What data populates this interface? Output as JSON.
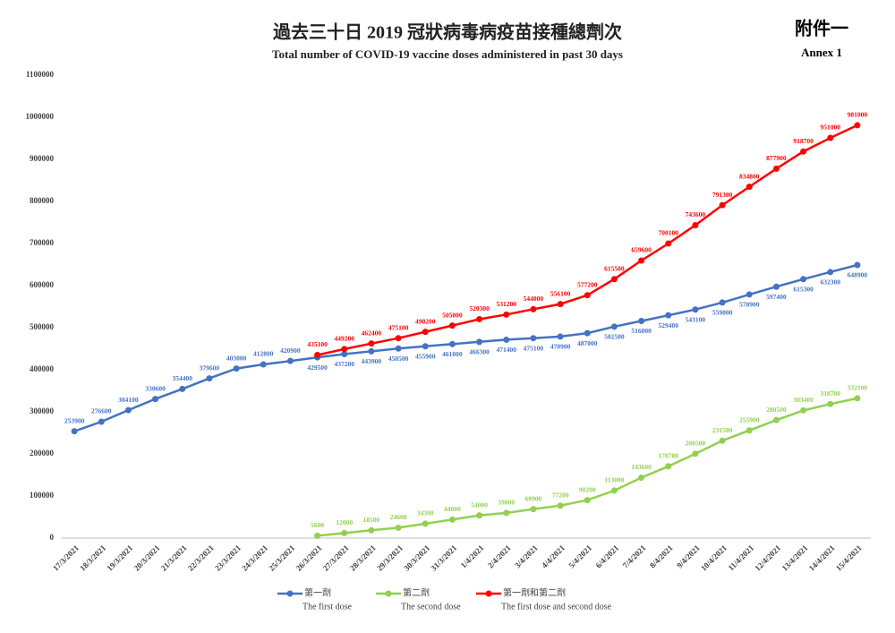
{
  "chart_data": {
    "type": "line",
    "title": "過去三十日 2019 冠狀病毒病疫苗接種總劑次",
    "subtitle": "Total number of COVID-19 vaccine doses administered in past 30 days",
    "annex": "附件一",
    "annex_en": "Annex 1",
    "categories": [
      "17/3/2021",
      "18/3/2021",
      "19/3/2021",
      "20/3/2021",
      "21/3/2021",
      "22/3/2021",
      "23/3/2021",
      "24/3/2021",
      "25/3/2021",
      "26/3/2021",
      "27/3/2021",
      "28/3/2021",
      "29/3/2021",
      "30/3/2021",
      "31/3/2021",
      "1/4/2021",
      "2/4/2021",
      "3/4/2021",
      "4/4/2021",
      "5/4/2021",
      "6/4/2021",
      "7/4/2021",
      "8/4/2021",
      "9/4/2021",
      "10/4/2021",
      "11/4/2021",
      "12/4/2021",
      "13/4/2021",
      "14/4/2021",
      "15/4/2021"
    ],
    "series": [
      {
        "name": "第一劑",
        "name_en": "The first dose",
        "color": "#4472c4",
        "values": [
          253900,
          276600,
          304100,
          330600,
          354400,
          379600,
          403000,
          412800,
          420900,
          429500,
          437200,
          443900,
          450500,
          455900,
          461000,
          466300,
          471400,
          475100,
          478900,
          487000,
          502500,
          516000,
          529400,
          543100,
          559800,
          578900,
          597400,
          615300,
          632300,
          648900
        ]
      },
      {
        "name": "第二劑",
        "name_en": "The second dose",
        "color": "#92d050",
        "values": [
          null,
          null,
          null,
          null,
          null,
          null,
          null,
          null,
          null,
          5600,
          12000,
          18500,
          24600,
          34300,
          44000,
          54000,
          59800,
          68900,
          77200,
          90200,
          113000,
          143600,
          170700,
          200500,
          231500,
          255900,
          280500,
          303400,
          318700,
          332100
        ]
      },
      {
        "name": "第一劑和第二劑",
        "name_en": "The first dose and second dose",
        "color": "#ff0000",
        "values": [
          null,
          null,
          null,
          null,
          null,
          null,
          null,
          null,
          null,
          435100,
          449200,
          462400,
          475100,
          490200,
          505000,
          520300,
          531200,
          544000,
          556100,
          577200,
          615500,
          659600,
          700100,
          743600,
          791300,
          834800,
          877900,
          918700,
          951000,
          981000
        ]
      }
    ],
    "ylim": [
      0,
      1100000
    ],
    "yticks": [
      0,
      100000,
      200000,
      300000,
      400000,
      500000,
      600000,
      700000,
      800000,
      900000,
      1000000,
      1100000
    ],
    "grid": false
  }
}
